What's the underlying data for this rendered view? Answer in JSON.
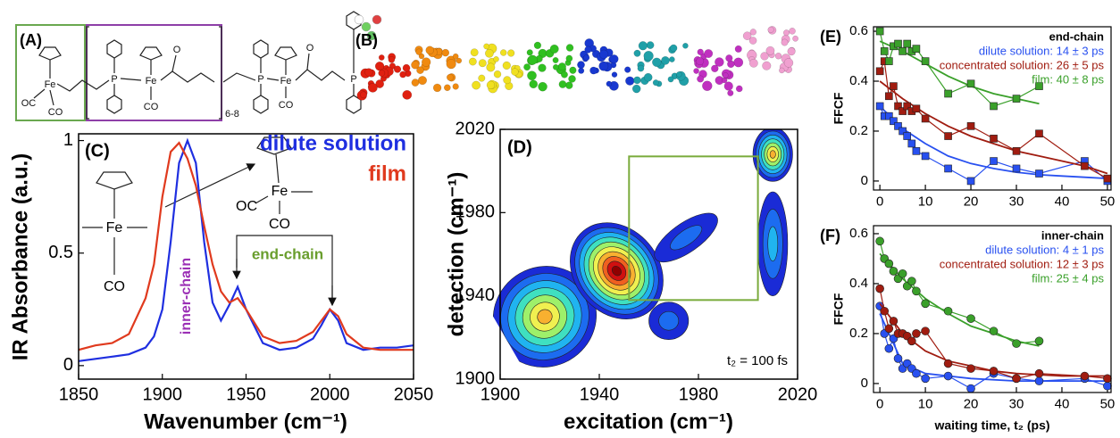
{
  "panel_a": {
    "label": "(A)",
    "atoms": [
      "Fe",
      "OC",
      "CO",
      "P",
      "Fe",
      "CO",
      "O",
      "6-8",
      "P",
      "Fe",
      "CO",
      "O",
      "P"
    ]
  },
  "panel_b": {
    "label": "(B)"
  },
  "chart_data": [
    {
      "type": "line",
      "label": "(C)",
      "xlabel": "Wavenumber (cm⁻¹)",
      "ylabel": "IR Absorbance (a.u.)",
      "x": [
        1850,
        1860,
        1870,
        1880,
        1890,
        1895,
        1900,
        1905,
        1910,
        1915,
        1920,
        1925,
        1930,
        1935,
        1940,
        1945,
        1950,
        1960,
        1970,
        1980,
        1990,
        1995,
        2000,
        2005,
        2010,
        2020,
        2030,
        2040,
        2050
      ],
      "series": [
        {
          "name": "dilute solution",
          "color": "#1f2fe0",
          "values": [
            0.02,
            0.03,
            0.04,
            0.05,
            0.08,
            0.13,
            0.25,
            0.55,
            0.9,
            1.0,
            0.9,
            0.55,
            0.28,
            0.2,
            0.27,
            0.35,
            0.25,
            0.1,
            0.07,
            0.08,
            0.12,
            0.18,
            0.25,
            0.2,
            0.1,
            0.07,
            0.08,
            0.08,
            0.09
          ]
        },
        {
          "name": "film",
          "color": "#e03a1e",
          "values": [
            0.07,
            0.09,
            0.1,
            0.14,
            0.3,
            0.45,
            0.75,
            0.95,
            0.99,
            0.92,
            0.8,
            0.62,
            0.45,
            0.33,
            0.28,
            0.3,
            0.25,
            0.13,
            0.1,
            0.11,
            0.15,
            0.2,
            0.25,
            0.22,
            0.14,
            0.08,
            0.07,
            0.07,
            0.07
          ]
        }
      ],
      "xlim": [
        1850,
        2050
      ],
      "ylim": [
        -0.06,
        1.03
      ],
      "xticks": [
        1850,
        1900,
        1950,
        2000,
        2050
      ],
      "yticks": [
        0,
        0.5,
        1
      ],
      "annotations": [
        "inner-chain",
        "end-chain"
      ],
      "annotation_colors": [
        "#9b2fb5",
        "#6a9e2e"
      ],
      "structure_labels": [
        "Fe",
        "CO",
        "OC",
        "Fe",
        "CO"
      ]
    },
    {
      "type": "contour",
      "label": "(D)",
      "xlabel": "excitation (cm⁻¹)",
      "ylabel": "detection (cm⁻¹)",
      "annotation": "t₂ = 100 fs",
      "xlim": [
        1900,
        2020
      ],
      "ylim": [
        1900,
        2020
      ],
      "xticks": [
        1900,
        1940,
        1980,
        2020
      ],
      "yticks": [
        1900,
        1940,
        1980,
        2020
      ],
      "colormap": [
        "#1a2bd6",
        "#1c6cf0",
        "#20b4f0",
        "#3fe0c0",
        "#9ef06a",
        "#f0f050",
        "#f8b030",
        "#f06020",
        "#d01010",
        "#900000"
      ],
      "peaks": [
        {
          "x": 1918,
          "y": 1930,
          "width": 42,
          "height": 48,
          "angle": -30,
          "levels": 7
        },
        {
          "x": 1947,
          "y": 1952,
          "width": 34,
          "height": 50,
          "angle": -40,
          "levels": 10
        },
        {
          "x": 1975,
          "y": 1968,
          "width": 30,
          "height": 14,
          "angle": -35,
          "levels": 2
        },
        {
          "x": 2010,
          "y": 2008,
          "width": 16,
          "height": 26,
          "angle": 0,
          "levels": 7
        },
        {
          "x": 2010,
          "y": 1965,
          "width": 12,
          "height": 50,
          "angle": 0,
          "levels": 3
        },
        {
          "x": 1968,
          "y": 1928,
          "width": 16,
          "height": 18,
          "angle": 0,
          "levels": 2
        }
      ],
      "box": {
        "x": [
          1952,
          2004
        ],
        "y": [
          1938,
          2007
        ],
        "color": "#7aab3c"
      }
    },
    {
      "type": "scatter",
      "label": "(E)",
      "title": "end-chain",
      "ylabel": "FFCF",
      "marker": "square",
      "xlim": [
        -1.4,
        50.8
      ],
      "ylim": [
        -0.036,
        0.618
      ],
      "xticks": [
        0,
        10,
        20,
        30,
        40,
        50
      ],
      "yticks": [
        0,
        0.2,
        0.4,
        0.6
      ],
      "series": [
        {
          "name": "dilute solution: 14 ± 3 ps",
          "color": "#2850f0",
          "x": [
            0,
            1,
            2,
            3,
            4,
            5,
            6,
            7,
            8,
            10,
            15,
            20,
            25,
            30,
            35,
            45,
            50
          ],
          "values": [
            0.3,
            0.26,
            0.26,
            0.24,
            0.22,
            0.2,
            0.18,
            0.15,
            0.12,
            0.1,
            0.05,
            0.0,
            0.08,
            0.05,
            0.03,
            0.08,
            0.0
          ],
          "fit": {
            "x": [
              0,
              5,
              10,
              15,
              20,
              25,
              30,
              35,
              40,
              45,
              50
            ],
            "values": [
              0.3,
              0.21,
              0.15,
              0.1,
              0.07,
              0.05,
              0.035,
              0.025,
              0.02,
              0.015,
              0.01
            ]
          }
        },
        {
          "name": "concentrated solution: 26 ± 5 ps",
          "color": "#a01c10",
          "x": [
            0,
            1,
            2,
            3,
            4,
            5,
            6,
            7,
            8,
            10,
            15,
            20,
            25,
            30,
            35,
            45,
            50
          ],
          "values": [
            0.44,
            0.48,
            0.34,
            0.38,
            0.3,
            0.28,
            0.3,
            0.28,
            0.29,
            0.25,
            0.18,
            0.22,
            0.17,
            0.12,
            0.19,
            0.06,
            0.01
          ],
          "fit": {
            "x": [
              0,
              5,
              10,
              15,
              20,
              25,
              30,
              35,
              40,
              45,
              50
            ],
            "values": [
              0.4,
              0.33,
              0.27,
              0.22,
              0.18,
              0.15,
              0.12,
              0.1,
              0.08,
              0.06,
              0.03
            ]
          }
        },
        {
          "name": "film: 40 ± 8 ps",
          "color": "#3aa02a",
          "x": [
            0,
            1,
            2,
            3,
            4,
            5,
            6,
            7,
            8,
            10,
            15,
            20,
            25,
            30,
            35
          ],
          "values": [
            0.6,
            0.52,
            0.48,
            0.54,
            0.55,
            0.52,
            0.55,
            0.52,
            0.53,
            0.48,
            0.35,
            0.39,
            0.3,
            0.33,
            0.38
          ],
          "fit": {
            "x": [
              0,
              5,
              10,
              15,
              20,
              25,
              30,
              35
            ],
            "values": [
              0.56,
              0.52,
              0.47,
              0.42,
              0.38,
              0.35,
              0.33,
              0.31
            ]
          }
        }
      ]
    },
    {
      "type": "scatter",
      "label": "(F)",
      "title": "inner-chain",
      "ylabel": "FFCF",
      "xlabel": "waiting time, t₂ (ps)",
      "marker": "circle",
      "xlim": [
        -1.4,
        50.8
      ],
      "ylim": [
        -0.036,
        0.632
      ],
      "xticks": [
        0,
        10,
        20,
        30,
        40,
        50
      ],
      "yticks": [
        0,
        0.2,
        0.4,
        0.6
      ],
      "series": [
        {
          "name": "dilute solution: 4 ± 1 ps",
          "color": "#2850f0",
          "x": [
            0,
            1,
            2,
            3,
            4,
            5,
            6,
            7,
            8,
            10,
            15,
            20,
            25,
            30,
            35,
            45,
            50
          ],
          "values": [
            0.31,
            0.2,
            0.14,
            0.18,
            0.1,
            0.06,
            0.08,
            0.06,
            0.04,
            0.02,
            0.03,
            -0.02,
            0.04,
            0.02,
            0.01,
            0.02,
            -0.01
          ],
          "fit": {
            "x": [
              0,
              5,
              10,
              15,
              20,
              30,
              50
            ],
            "values": [
              0.28,
              0.08,
              0.04,
              0.03,
              0.02,
              0.01,
              0.01
            ]
          }
        },
        {
          "name": "concentrated solution: 12 ± 3 ps",
          "color": "#a01c10",
          "x": [
            0,
            1,
            2,
            3,
            4,
            5,
            6,
            7,
            8,
            10,
            15,
            20,
            25,
            30,
            35,
            45,
            50
          ],
          "values": [
            0.38,
            0.29,
            0.22,
            0.25,
            0.2,
            0.2,
            0.19,
            0.17,
            0.2,
            0.21,
            0.08,
            0.06,
            0.05,
            0.02,
            0.04,
            0.03,
            0.02
          ],
          "fit": {
            "x": [
              0,
              5,
              10,
              15,
              20,
              25,
              30,
              40,
              50
            ],
            "values": [
              0.32,
              0.2,
              0.13,
              0.09,
              0.07,
              0.05,
              0.04,
              0.03,
              0.03
            ]
          }
        },
        {
          "name": "film: 25 ± 4 ps",
          "color": "#3aa02a",
          "x": [
            0,
            1,
            2,
            3,
            4,
            5,
            6,
            7,
            8,
            10,
            15,
            20,
            25,
            30,
            35
          ],
          "values": [
            0.57,
            0.5,
            0.48,
            0.45,
            0.42,
            0.44,
            0.39,
            0.41,
            0.37,
            0.32,
            0.29,
            0.26,
            0.21,
            0.16,
            0.17
          ],
          "fit": {
            "x": [
              0,
              5,
              10,
              15,
              20,
              25,
              30,
              35
            ],
            "values": [
              0.52,
              0.42,
              0.34,
              0.28,
              0.23,
              0.2,
              0.17,
              0.15
            ]
          }
        }
      ]
    }
  ]
}
